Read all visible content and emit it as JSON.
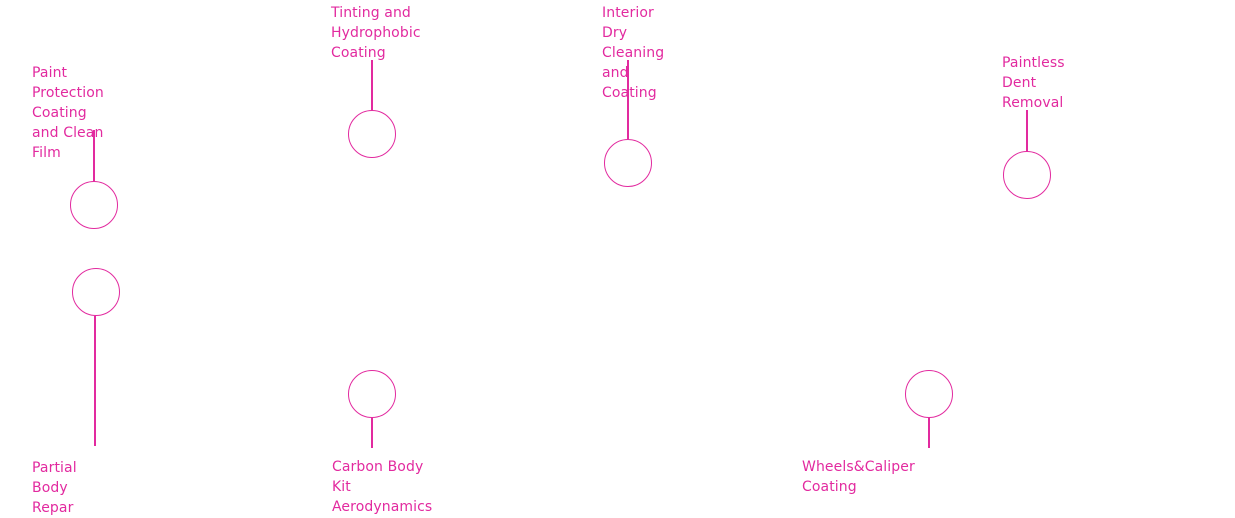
{
  "colors": {
    "accent": "#e22a9f",
    "background": "#ffffff"
  },
  "services": [
    {
      "label": "Paint Protection Coating\nand Clean Film"
    },
    {
      "label": "Tinting and Hydrophobic\nCoating"
    },
    {
      "label": "Interior Dry Cleaning\nand Coating"
    },
    {
      "label": "Paintless Dent\nRemoval"
    },
    {
      "label": "Partial Body Repar"
    },
    {
      "label": "Carbon Body Kit Aerodynamics"
    },
    {
      "label": "Wheels&Caliper Coating"
    }
  ]
}
